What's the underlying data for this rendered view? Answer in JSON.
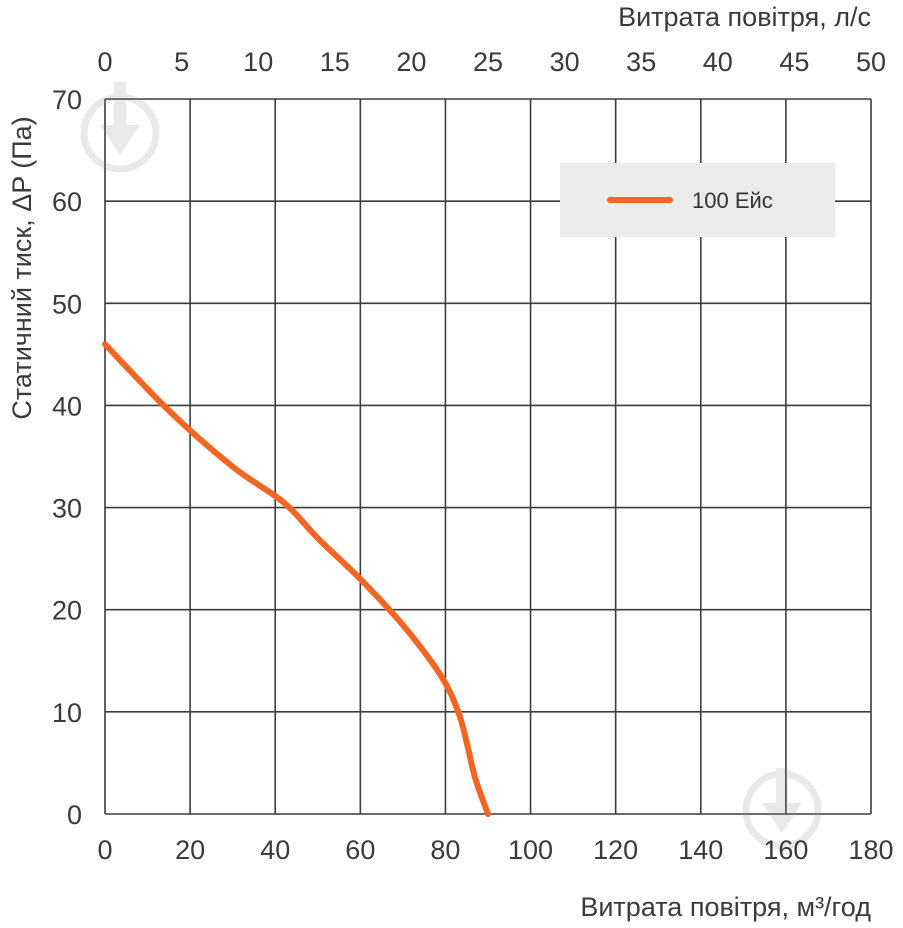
{
  "chart_data": {
    "type": "line",
    "title": "",
    "x_top": {
      "label": "Витрата повітря, л/с",
      "ticks": [
        "0",
        "5",
        "10",
        "15",
        "20",
        "25",
        "30",
        "35",
        "40",
        "45",
        "50"
      ],
      "range": [
        0,
        50
      ]
    },
    "x_bottom": {
      "label": "Витрата повітря, м³/год",
      "ticks": [
        "0",
        "20",
        "40",
        "60",
        "80",
        "100",
        "120",
        "140",
        "160",
        "180"
      ],
      "range": [
        0,
        180
      ]
    },
    "y": {
      "label": "Статичний тиск, ΔP (Па)",
      "ticks": [
        "0",
        "10",
        "20",
        "30",
        "40",
        "50",
        "60",
        "70"
      ],
      "range": [
        0,
        70
      ]
    },
    "grid": true,
    "legend_position": "top-right",
    "series": [
      {
        "name": "100 Ейс",
        "color": "#f26522",
        "x": [
          0,
          15,
          30,
          42,
          50,
          60,
          70,
          79,
          83,
          85,
          87,
          90
        ],
        "y": [
          46,
          39.5,
          34,
          30.5,
          27,
          23,
          18.5,
          13.5,
          10,
          7,
          3.5,
          0
        ]
      }
    ]
  }
}
